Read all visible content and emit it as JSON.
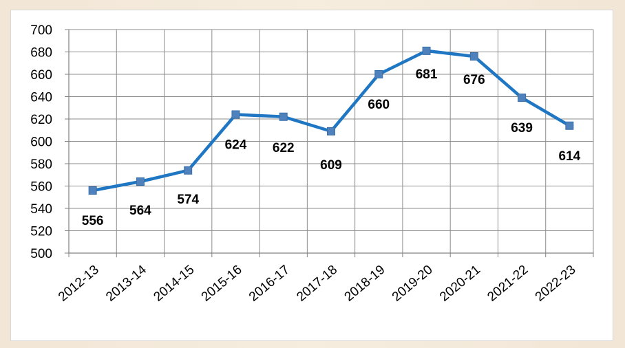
{
  "chart_data": {
    "type": "line",
    "categories": [
      "2012-13",
      "2013-14",
      "2014-15",
      "2015-16",
      "2016-17",
      "2017-18",
      "2018-19",
      "2019-20",
      "2020-21",
      "2021-22",
      "2022-23"
    ],
    "series": [
      {
        "values": [
          556,
          564,
          574,
          624,
          622,
          609,
          660,
          681,
          676,
          639,
          614
        ]
      }
    ],
    "data_labels": [
      "556",
      "564",
      "574",
      "624",
      "622",
      "609",
      "660",
      "681",
      "676",
      "639",
      "614"
    ],
    "title": "",
    "xlabel": "",
    "ylabel": "",
    "ylim": [
      500,
      700
    ],
    "yticks": [
      500,
      520,
      540,
      560,
      580,
      600,
      620,
      640,
      660,
      680,
      700
    ],
    "ytick_labels": [
      "500",
      "520",
      "540",
      "560",
      "580",
      "600",
      "620",
      "640",
      "660",
      "680",
      "700"
    ],
    "grid": true,
    "legend": "none",
    "colors": {
      "line": "#1f77c4",
      "marker": "#4f81bd",
      "grid": "#8c8c8c",
      "frame": "#7a2328"
    }
  }
}
